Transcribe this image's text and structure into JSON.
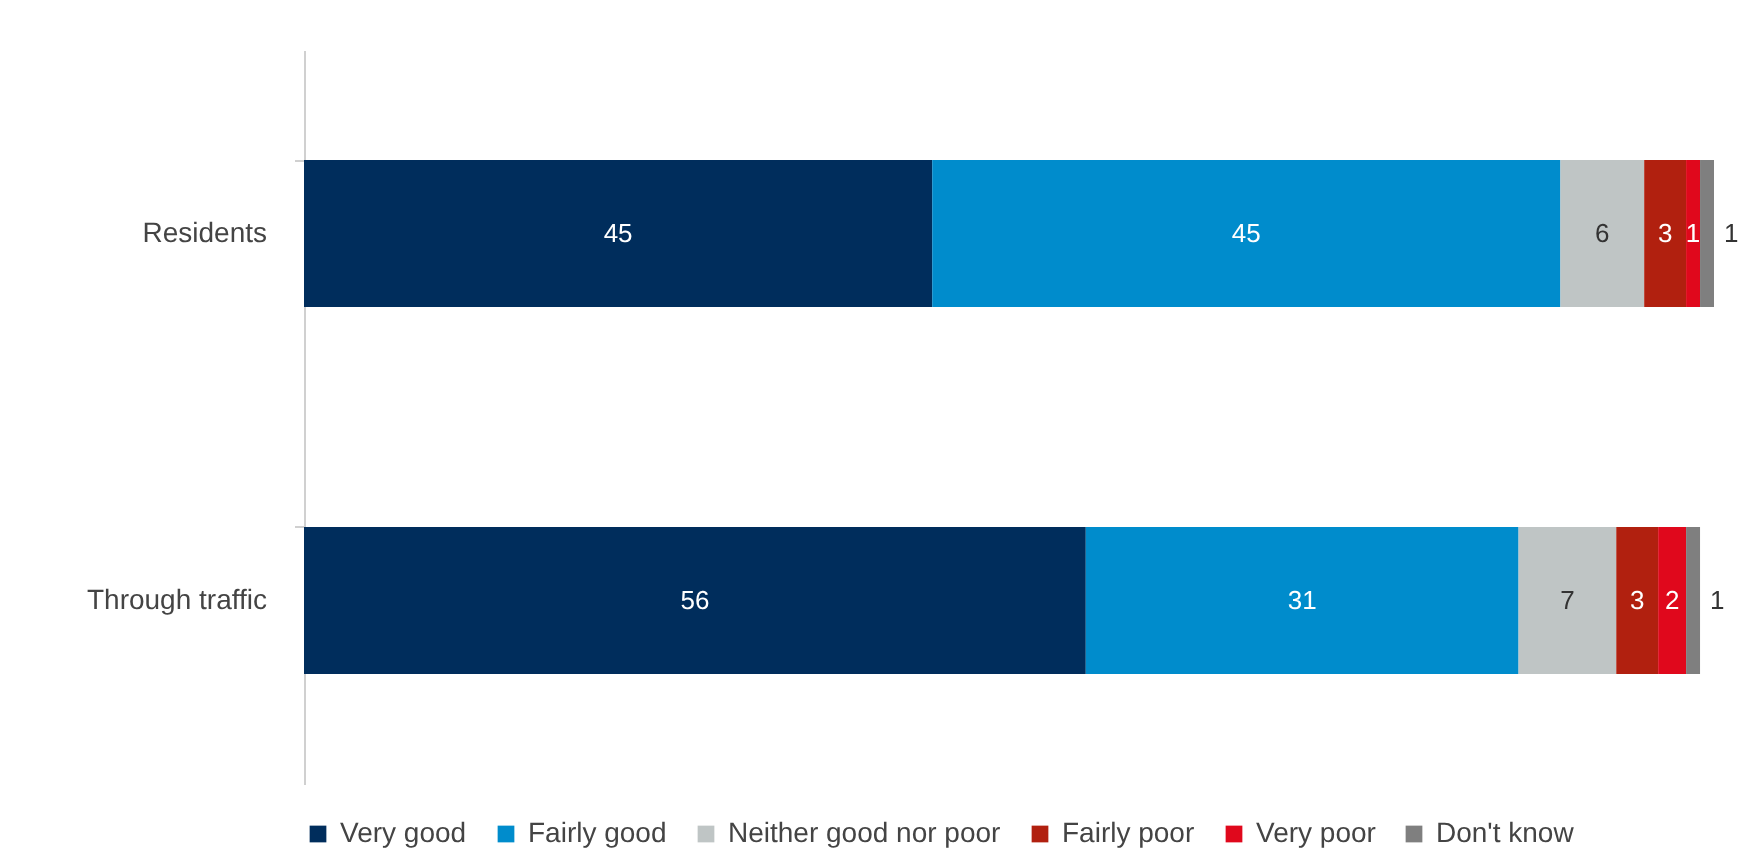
{
  "chart_data": {
    "type": "bar",
    "orientation": "horizontal",
    "stacked": true,
    "data_labels": true,
    "legend": "bottom",
    "grid": false,
    "categories": [
      "Residents",
      "Through traffic"
    ],
    "series": [
      {
        "name": "Very good",
        "color": "#002d5c",
        "values": [
          45,
          56
        ]
      },
      {
        "name": "Fairly good",
        "color": "#008ccc",
        "values": [
          45,
          31
        ]
      },
      {
        "name": "Neither good nor poor",
        "color": "#bfc5c5",
        "values": [
          6,
          7
        ]
      },
      {
        "name": "Fairly poor",
        "color": "#b1200f",
        "values": [
          3,
          3
        ]
      },
      {
        "name": "Very poor",
        "color": "#e0081c",
        "values": [
          1,
          2
        ]
      },
      {
        "name": "Don't know",
        "color": "#7f7f7f",
        "values": [
          1,
          1
        ]
      }
    ]
  }
}
